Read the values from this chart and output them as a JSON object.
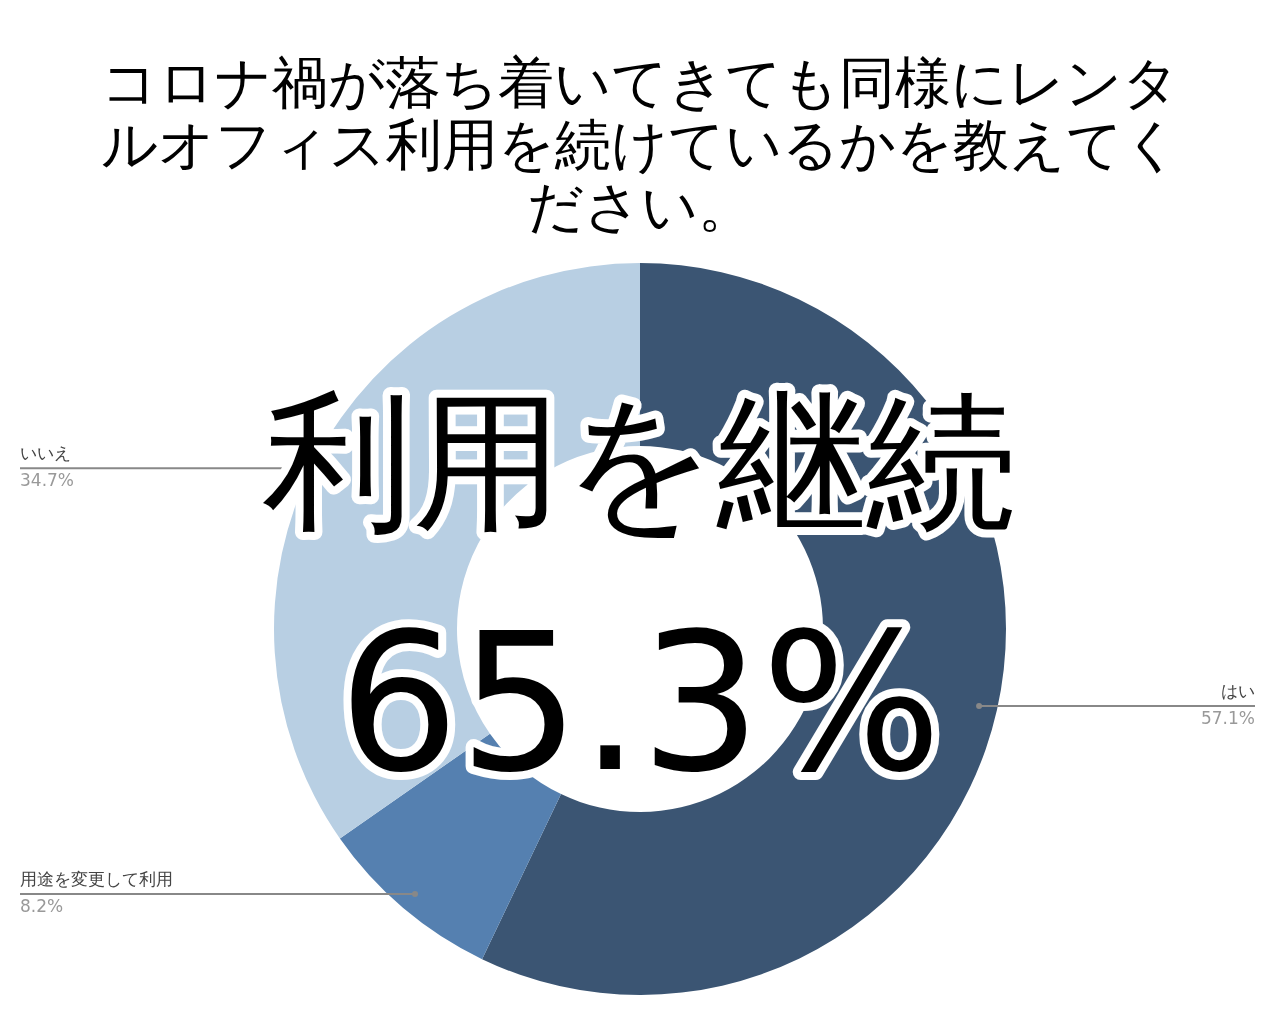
{
  "chart_data": {
    "type": "donut",
    "title": "コロナ禍が落ち着いてきても同様にレンタルオフィス利用を続けているかを教えてください。",
    "categories": [
      "はい",
      "用途を変更して利用",
      "いいえ"
    ],
    "values": [
      57.1,
      8.2,
      34.7
    ],
    "value_labels": [
      "57.1%",
      "8.2%",
      "34.7%"
    ],
    "colors": [
      "#3b5573",
      "#5580b0",
      "#b8cfe3"
    ],
    "annotations": [
      "利用を継続",
      "65.3%"
    ],
    "legend": false
  }
}
